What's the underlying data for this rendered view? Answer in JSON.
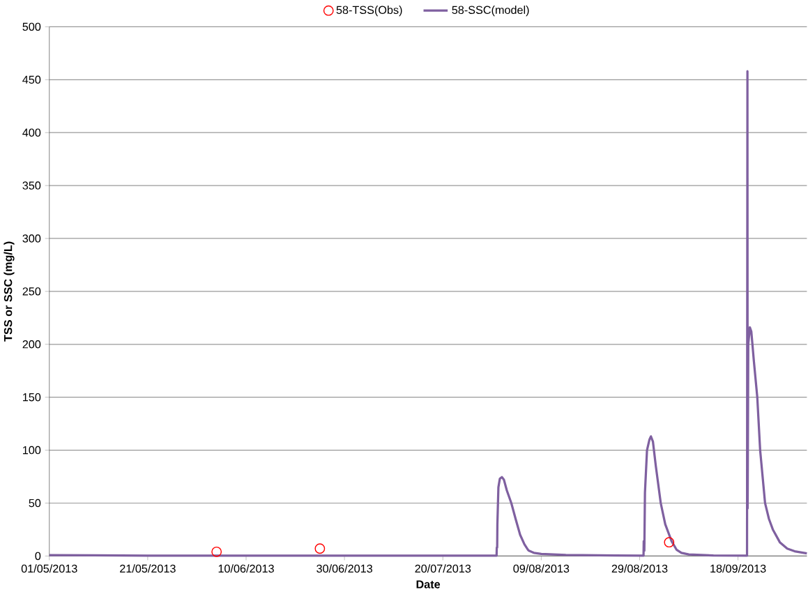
{
  "chart_data": {
    "type": "line",
    "xlabel": "Date",
    "ylabel": "TSS or SSC (mg/L)",
    "xlim": [
      "2013-05-01",
      "2013-10-02"
    ],
    "ylim": [
      0,
      500
    ],
    "xticks": [
      {
        "value": "2013-05-01",
        "label": "01/05/2013"
      },
      {
        "value": "2013-05-21",
        "label": "21/05/2013"
      },
      {
        "value": "2013-06-10",
        "label": "10/06/2013"
      },
      {
        "value": "2013-06-30",
        "label": "30/06/2013"
      },
      {
        "value": "2013-07-20",
        "label": "20/07/2013"
      },
      {
        "value": "2013-08-09",
        "label": "09/08/2013"
      },
      {
        "value": "2013-08-29",
        "label": "29/08/2013"
      },
      {
        "value": "2013-09-18",
        "label": "18/09/2013"
      }
    ],
    "yticks": [
      0,
      50,
      100,
      150,
      200,
      250,
      300,
      350,
      400,
      450,
      500
    ],
    "grid": "y",
    "legend": "top",
    "series": [
      {
        "name": "58-TSS(Obs)",
        "type": "scatter",
        "marker": "circle",
        "color": "#ff0000",
        "x": [
          "2013-06-04",
          "2013-06-25",
          "2013-09-04"
        ],
        "values": [
          4,
          7,
          13
        ]
      },
      {
        "name": "58-SSC(model)",
        "marker": "none",
        "line_style": "solid",
        "color": "#7f60a0",
        "x": [
          "2013-05-01",
          "2013-05-10",
          "2013-05-21",
          "2013-07-30T22:00",
          "2013-07-30T23:00",
          "2013-07-31T01:00",
          "2013-07-31T02:00",
          "2013-07-31T07:00",
          "2013-07-31T14:00",
          "2013-08-01T00:00",
          "2013-08-01T10:00",
          "2013-08-02T00:00",
          "2013-08-02T22:00",
          "2013-08-03T19:00",
          "2013-08-04T17:00",
          "2013-08-05T14:00",
          "2013-08-06T07:00",
          "2013-08-06T12:00",
          "2013-08-07T12:00",
          "2013-08-09",
          "2013-08-14",
          "2013-08-24",
          "2013-08-29T19:00",
          "2013-08-29T20:00",
          "2013-08-29T23:00",
          "2013-08-30T02:00",
          "2013-08-30T12:00",
          "2013-08-31T00:00",
          "2013-08-31T07:00",
          "2013-08-31T17:00",
          "2013-09-01T07:00",
          "2013-09-02T07:00",
          "2013-09-03T05:00",
          "2013-09-04T12:00",
          "2013-09-05T12:00",
          "2013-09-06T12:00",
          "2013-09-08",
          "2013-09-13",
          "2013-09-19T20:00",
          "2013-09-19T22:00",
          "2013-09-19T23:00",
          "2013-09-20T02:00",
          "2013-09-20T10:00",
          "2013-09-20T17:00",
          "2013-09-21T05:00",
          "2013-09-21T22:00",
          "2013-09-22T12:00",
          "2013-09-23T12:00",
          "2013-09-24T07:00",
          "2013-09-25T02:00",
          "2013-09-26T12:00",
          "2013-09-28",
          "2013-09-29T12:00",
          "2013-10-02"
        ],
        "values": [
          0.8,
          0.6,
          0.3,
          0.3,
          8,
          8,
          30,
          65,
          73,
          74.5,
          72,
          62,
          50,
          35,
          20,
          11,
          6,
          5,
          3,
          2,
          1,
          0.5,
          0.3,
          14,
          5,
          60,
          100,
          110,
          113,
          108,
          85,
          50,
          30,
          14,
          6,
          3,
          1.5,
          0.5,
          0.3,
          458,
          45,
          200,
          216,
          212,
          185,
          150,
          100,
          50,
          35,
          25,
          13,
          7,
          4.5,
          2.5
        ]
      }
    ]
  }
}
